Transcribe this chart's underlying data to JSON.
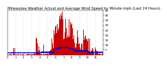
{
  "title": "Milwaukee Weather Actual and Average Wind Speed by Minute mph (Last 24 Hours)",
  "title_fontsize": 3.8,
  "background_color": "#ffffff",
  "plot_bg_color": "#ffffff",
  "n_points": 1440,
  "bar_color": "#cc0000",
  "line_color": "#0000cc",
  "ylim": [
    0,
    45
  ],
  "yticks": [
    5,
    10,
    15,
    20,
    25,
    30,
    35,
    40,
    45
  ],
  "ylabel_fontsize": 3.2,
  "xlabel_fontsize": 2.8,
  "grid_color": "#bbbbbb",
  "grid_style": ":"
}
